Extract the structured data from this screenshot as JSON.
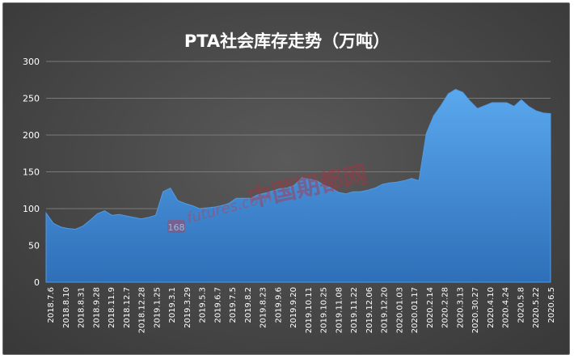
{
  "chart_data": {
    "type": "area",
    "title": "PTA社会库存走势（万吨）",
    "xlabel": "",
    "ylabel": "",
    "ylim": [
      0,
      300
    ],
    "yticks": [
      0,
      50,
      100,
      150,
      200,
      250,
      300
    ],
    "grid": true,
    "legend": "none",
    "colors": {
      "fill_top": "#5aa8ee",
      "fill_bottom": "#2e6fb8",
      "grid": "#7a7a7a",
      "text": "#ffffff"
    },
    "x_labels": [
      "2018.7.6",
      "2018.8.10",
      "2018.8.31",
      "2018.9.28",
      "2018.11.9",
      "2018.12.7",
      "2018.12.28",
      "2019.1.25",
      "2019.3.1",
      "2019.3.29",
      "2019.5.3",
      "2019.6.7",
      "2019.7.5",
      "2019.8.2",
      "2019.8.23",
      "2019.9.6",
      "2019.9.20",
      "2019.10.11",
      "2019.10.25",
      "2019.11.08",
      "2019.11.22",
      "2019.12.06",
      "2019.12.20",
      "2020.01.03",
      "2020.01.17",
      "2020.2.14",
      "2020.2.28",
      "2020.3.13",
      "2020.30.27",
      "2020.4.10",
      "2020.4.24",
      "2020.5.8",
      "2020.5.22",
      "2020.6.5"
    ],
    "values": [
      94,
      80,
      75,
      73,
      72,
      76,
      84,
      93,
      97,
      91,
      92,
      90,
      88,
      86,
      88,
      91,
      123,
      128,
      111,
      107,
      104,
      100,
      101,
      102,
      104,
      107,
      114,
      114,
      114,
      119,
      121,
      124,
      127,
      128,
      132,
      142,
      140,
      138,
      132,
      128,
      122,
      120,
      123,
      123,
      125,
      128,
      133,
      135,
      136,
      138,
      141,
      138,
      202,
      226,
      240,
      256,
      262,
      258,
      246,
      236,
      240,
      244,
      244,
      244,
      239,
      248,
      239,
      233,
      230,
      229
    ]
  },
  "watermark": {
    "text": "中国期都网",
    "badge": "168",
    "url_text": "futures.com"
  }
}
